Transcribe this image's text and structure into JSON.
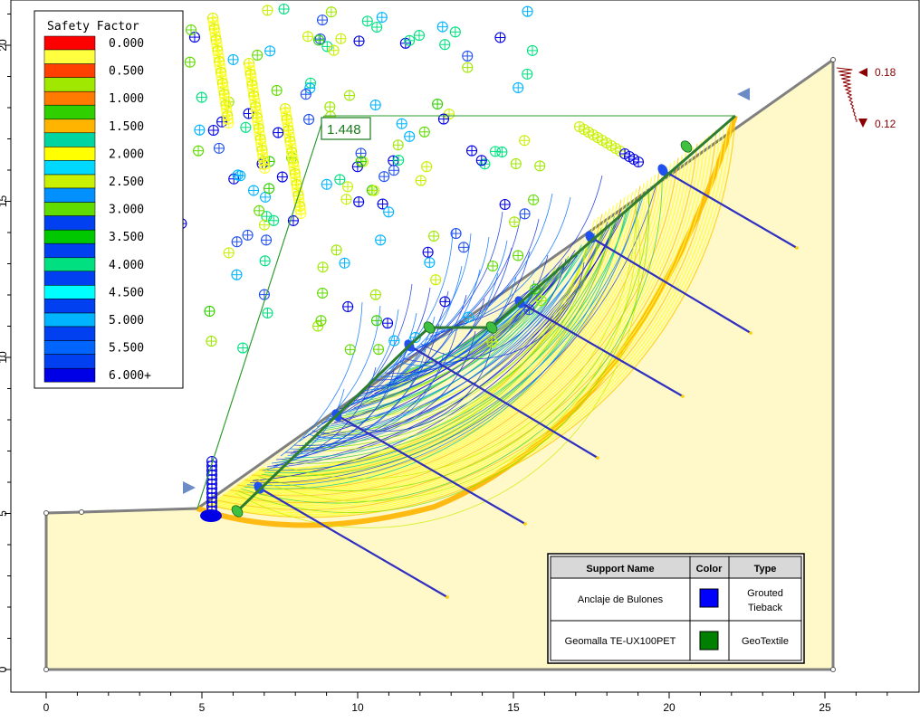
{
  "legend": {
    "title": "Safety Factor",
    "entries": [
      {
        "label": "0.000",
        "color": "#ff0000"
      },
      {
        "label": "0.500",
        "color": "#ff4000"
      },
      {
        "label": "1.000",
        "color": "#ff7a00"
      },
      {
        "label": "1.500",
        "color": "#ffb400"
      },
      {
        "label": "2.000",
        "color": "#ffff00"
      },
      {
        "label": "2.500",
        "color": "#c8f000"
      },
      {
        "label": "3.000",
        "color": "#60dc00"
      },
      {
        "label": "3.500",
        "color": "#00c800"
      },
      {
        "label": "4.000",
        "color": "#00e080"
      },
      {
        "label": "4.500",
        "color": "#00ffff"
      },
      {
        "label": "5.000",
        "color": "#00b4ff"
      },
      {
        "label": "5.500",
        "color": "#0064ff"
      },
      {
        "label": "6.000+",
        "color": "#0000e6"
      }
    ],
    "extra_colors": [
      "#ffff40",
      "#a0e800",
      "#30d000",
      "#00d4a0",
      "#00d8ff",
      "#0090ff",
      "#0040f0"
    ]
  },
  "axes": {
    "x_ticks": [
      "0",
      "5",
      "10",
      "15",
      "20",
      "25"
    ],
    "y_ticks": [
      "0",
      "5",
      "10",
      "15",
      "20"
    ]
  },
  "critical_sf": "1.448",
  "seismic": {
    "horizontal": "0.18",
    "vertical": "0.12"
  },
  "support_table": {
    "headers": [
      "Support Name",
      "Color",
      "Type"
    ],
    "rows": [
      {
        "name": "Anclaje de Bulones",
        "color": "#0000ff",
        "type_line1": "Grouted",
        "type_line2": "Tieback"
      },
      {
        "name": "Geomalla TE-UX100PET",
        "color": "#008000",
        "type_line1": "GeoTextile",
        "type_line2": ""
      }
    ]
  },
  "colors": {
    "slope_fill": "#fff8c8",
    "boundary": "#808080",
    "bolt": "#3030c0",
    "geogrid": "#2e7d32"
  }
}
